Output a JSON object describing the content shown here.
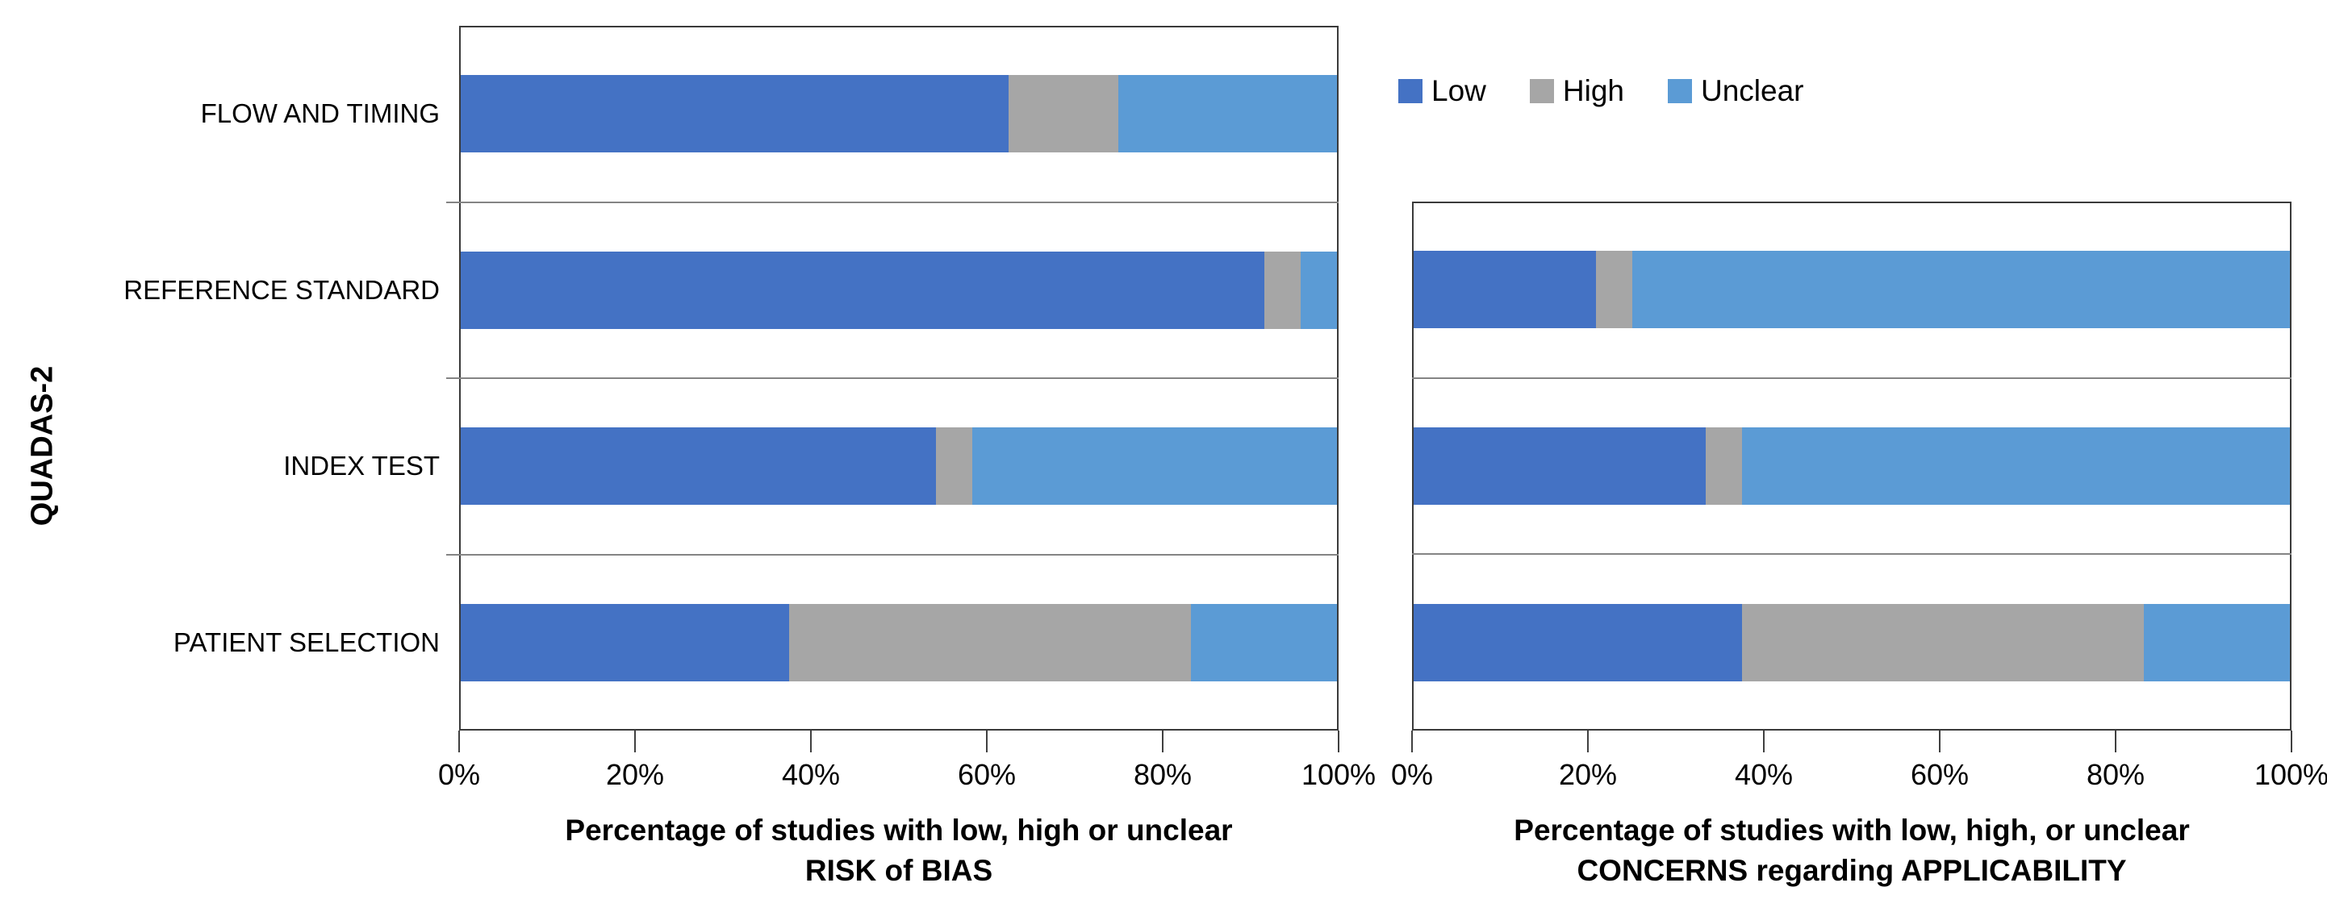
{
  "figure": {
    "y_axis_title": "QUADAS-2",
    "categories": [
      "FLOW AND TIMING",
      "REFERENCE STANDARD",
      "INDEX TEST",
      "PATIENT SELECTION"
    ],
    "legend": {
      "position": "top-right",
      "items": [
        {
          "label": "Low",
          "color": "#4472C4"
        },
        {
          "label": "High",
          "color": "#A6A6A6"
        },
        {
          "label": "Unclear",
          "color": "#5B9BD5"
        }
      ]
    },
    "colors": {
      "low": "#4472C4",
      "high": "#A6A6A6",
      "unclear": "#5B9BD5",
      "plot_border": "#3a3a3a",
      "gridline": "#848484",
      "text": "#000000"
    }
  },
  "chart_data": [
    {
      "id": "risk-of-bias",
      "type": "bar",
      "orientation": "horizontal",
      "stacked": true,
      "grid": false,
      "xlim": [
        0,
        100
      ],
      "x_ticks": [
        "0%",
        "20%",
        "40%",
        "60%",
        "80%",
        "100%"
      ],
      "xlabel_line1": "Percentage of studies with low, high or unclear",
      "xlabel_line2": "RISK of BIAS",
      "categories": [
        "FLOW AND TIMING",
        "REFERENCE STANDARD",
        "INDEX TEST",
        "PATIENT SELECTION"
      ],
      "series": [
        {
          "name": "Low",
          "color": "#4472C4",
          "values": [
            62.5,
            91.7,
            54.2,
            37.5
          ]
        },
        {
          "name": "High",
          "color": "#A6A6A6",
          "values": [
            12.5,
            4.2,
            4.2,
            45.8
          ]
        },
        {
          "name": "Unclear",
          "color": "#5B9BD5",
          "values": [
            25.0,
            4.1,
            41.6,
            16.7
          ]
        }
      ]
    },
    {
      "id": "applicability",
      "type": "bar",
      "orientation": "horizontal",
      "stacked": true,
      "grid": false,
      "xlim": [
        0,
        100
      ],
      "x_ticks": [
        "0%",
        "20%",
        "40%",
        "60%",
        "80%",
        "100%"
      ],
      "xlabel_line1": "Percentage of studies with low, high, or unclear",
      "xlabel_line2": "CONCERNS regarding APPLICABILITY",
      "categories": [
        "REFERENCE STANDARD",
        "INDEX TEST",
        "PATIENT SELECTION"
      ],
      "series": [
        {
          "name": "Low",
          "color": "#4472C4",
          "values": [
            20.8,
            33.3,
            37.5
          ]
        },
        {
          "name": "High",
          "color": "#A6A6A6",
          "values": [
            4.2,
            4.2,
            45.8
          ]
        },
        {
          "name": "Unclear",
          "color": "#5B9BD5",
          "values": [
            75.0,
            62.5,
            16.7
          ]
        }
      ]
    }
  ]
}
